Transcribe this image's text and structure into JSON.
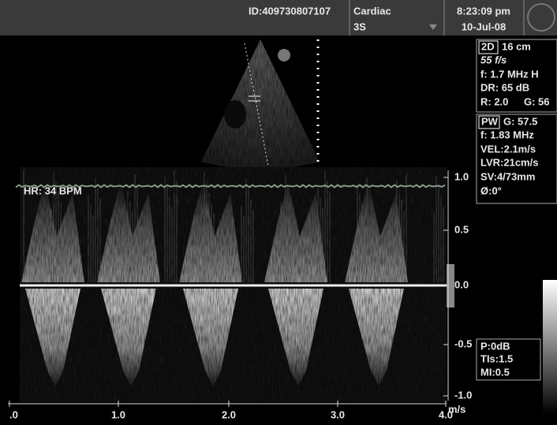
{
  "header": {
    "id": "ID:409730807107",
    "exam": "Cardiac",
    "probe": "3S",
    "time": "8:23:09 pm",
    "date": "10-Jul-08"
  },
  "panel_2d": {
    "mode": "2D",
    "depth": "16 cm",
    "frame_rate": "55 f/s",
    "frequency": "f: 1.7 MHz H",
    "dynamic_range": "DR: 65 dB",
    "reject": "R: 2.0",
    "gain": "G: 56"
  },
  "panel_pw": {
    "mode": "PW",
    "gain": "G: 57.5",
    "frequency": "f: 1.83 MHz",
    "velocity": "VEL:2.1m/s",
    "lvr": "LVR:21cm/s",
    "sample_volume": "SV:4/73mm",
    "angle": "Ø:0°"
  },
  "panel_power": {
    "power": "P:0dB",
    "tis": "TIs:1.5",
    "mi": "MI:0.5"
  },
  "heart_rate": "HR: 34 BPM",
  "velocity_axis": {
    "ticks": [
      "1.0",
      "0.5",
      "0.0",
      "-0.5",
      "-1.0"
    ],
    "unit": "m/s"
  },
  "time_axis": {
    "ticks": [
      ".0",
      "1.0",
      "2.0",
      "3.0",
      "4.0"
    ]
  }
}
